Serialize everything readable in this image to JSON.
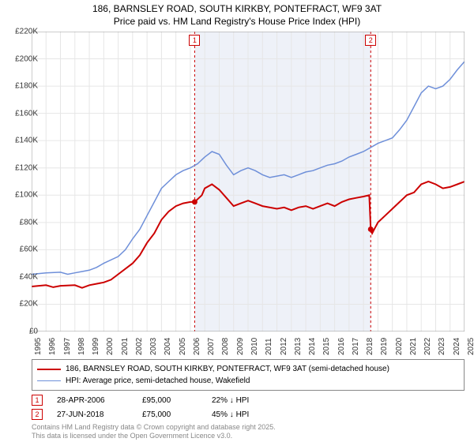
{
  "title_line1": "186, BARNSLEY ROAD, SOUTH KIRKBY, PONTEFRACT, WF9 3AT",
  "title_line2": "Price paid vs. HM Land Registry's House Price Index (HPI)",
  "chart": {
    "type": "line",
    "background_color": "#ffffff",
    "plot_shade_color": "#eef1f8",
    "grid_color": "#e6e6e6",
    "ylim": [
      0,
      220000
    ],
    "ytick_step": 20000,
    "y_tick_labels": [
      "£0",
      "£20K",
      "£40K",
      "£60K",
      "£80K",
      "£100K",
      "£120K",
      "£140K",
      "£160K",
      "£180K",
      "£200K",
      "£220K"
    ],
    "x_years": [
      1995,
      1996,
      1997,
      1998,
      1999,
      2000,
      2001,
      2002,
      2003,
      2004,
      2005,
      2006,
      2007,
      2008,
      2009,
      2010,
      2011,
      2012,
      2013,
      2014,
      2015,
      2016,
      2017,
      2018,
      2019,
      2020,
      2021,
      2022,
      2023,
      2024,
      2025
    ],
    "shade_start_year": 2006.3,
    "shade_end_year": 2018.5,
    "series": [
      {
        "name": "price_paid",
        "color": "#cc0000",
        "width": 2,
        "points": [
          [
            1995,
            33000
          ],
          [
            1996,
            34000
          ],
          [
            1996.5,
            32500
          ],
          [
            1997,
            33500
          ],
          [
            1998,
            34000
          ],
          [
            1998.5,
            32000
          ],
          [
            1999,
            34000
          ],
          [
            2000,
            36000
          ],
          [
            2000.5,
            38000
          ],
          [
            2001,
            42000
          ],
          [
            2002,
            50000
          ],
          [
            2002.5,
            56000
          ],
          [
            2003,
            65000
          ],
          [
            2003.5,
            72000
          ],
          [
            2004,
            82000
          ],
          [
            2004.5,
            88000
          ],
          [
            2005,
            92000
          ],
          [
            2005.5,
            94000
          ],
          [
            2006,
            95000
          ],
          [
            2006.3,
            95000
          ],
          [
            2006.8,
            100000
          ],
          [
            2007,
            105000
          ],
          [
            2007.5,
            108000
          ],
          [
            2008,
            104000
          ],
          [
            2008.5,
            98000
          ],
          [
            2009,
            92000
          ],
          [
            2009.5,
            94000
          ],
          [
            2010,
            96000
          ],
          [
            2010.5,
            94000
          ],
          [
            2011,
            92000
          ],
          [
            2012,
            90000
          ],
          [
            2012.5,
            91000
          ],
          [
            2013,
            89000
          ],
          [
            2013.5,
            91000
          ],
          [
            2014,
            92000
          ],
          [
            2014.5,
            90000
          ],
          [
            2015,
            92000
          ],
          [
            2015.5,
            94000
          ],
          [
            2016,
            92000
          ],
          [
            2016.5,
            95000
          ],
          [
            2017,
            97000
          ],
          [
            2017.5,
            98000
          ],
          [
            2018,
            99000
          ],
          [
            2018.4,
            100000
          ],
          [
            2018.5,
            75000
          ],
          [
            2018.6,
            72000
          ],
          [
            2018.8,
            76000
          ],
          [
            2019,
            80000
          ],
          [
            2019.5,
            85000
          ],
          [
            2020,
            90000
          ],
          [
            2020.5,
            95000
          ],
          [
            2021,
            100000
          ],
          [
            2021.5,
            102000
          ],
          [
            2022,
            108000
          ],
          [
            2022.5,
            110000
          ],
          [
            2023,
            108000
          ],
          [
            2023.5,
            105000
          ],
          [
            2024,
            106000
          ],
          [
            2024.5,
            108000
          ],
          [
            2025,
            110000
          ]
        ]
      },
      {
        "name": "hpi",
        "color": "#6e8fd9",
        "width": 1.5,
        "points": [
          [
            1995,
            42000
          ],
          [
            1996,
            43000
          ],
          [
            1997,
            43500
          ],
          [
            1997.5,
            42000
          ],
          [
            1998,
            43000
          ],
          [
            1998.5,
            44000
          ],
          [
            1999,
            45000
          ],
          [
            1999.5,
            47000
          ],
          [
            2000,
            50000
          ],
          [
            2001,
            55000
          ],
          [
            2001.5,
            60000
          ],
          [
            2002,
            68000
          ],
          [
            2002.5,
            75000
          ],
          [
            2003,
            85000
          ],
          [
            2003.5,
            95000
          ],
          [
            2004,
            105000
          ],
          [
            2004.5,
            110000
          ],
          [
            2005,
            115000
          ],
          [
            2005.5,
            118000
          ],
          [
            2006,
            120000
          ],
          [
            2006.5,
            123000
          ],
          [
            2007,
            128000
          ],
          [
            2007.5,
            132000
          ],
          [
            2008,
            130000
          ],
          [
            2008.5,
            122000
          ],
          [
            2009,
            115000
          ],
          [
            2009.5,
            118000
          ],
          [
            2010,
            120000
          ],
          [
            2010.5,
            118000
          ],
          [
            2011,
            115000
          ],
          [
            2011.5,
            113000
          ],
          [
            2012,
            114000
          ],
          [
            2012.5,
            115000
          ],
          [
            2013,
            113000
          ],
          [
            2013.5,
            115000
          ],
          [
            2014,
            117000
          ],
          [
            2014.5,
            118000
          ],
          [
            2015,
            120000
          ],
          [
            2015.5,
            122000
          ],
          [
            2016,
            123000
          ],
          [
            2016.5,
            125000
          ],
          [
            2017,
            128000
          ],
          [
            2017.5,
            130000
          ],
          [
            2018,
            132000
          ],
          [
            2018.5,
            135000
          ],
          [
            2019,
            138000
          ],
          [
            2019.5,
            140000
          ],
          [
            2020,
            142000
          ],
          [
            2020.5,
            148000
          ],
          [
            2021,
            155000
          ],
          [
            2021.5,
            165000
          ],
          [
            2022,
            175000
          ],
          [
            2022.5,
            180000
          ],
          [
            2023,
            178000
          ],
          [
            2023.5,
            180000
          ],
          [
            2024,
            185000
          ],
          [
            2024.5,
            192000
          ],
          [
            2025,
            198000
          ]
        ]
      }
    ],
    "sale_markers": [
      {
        "id": "1",
        "year": 2006.3,
        "y": 95000
      },
      {
        "id": "2",
        "year": 2018.5,
        "y": 75000
      }
    ],
    "marker_line_color": "#cc0000"
  },
  "legend": {
    "items": [
      {
        "color": "#cc0000",
        "width": 2,
        "label": "186, BARNSLEY ROAD, SOUTH KIRKBY, PONTEFRACT, WF9 3AT (semi-detached house)"
      },
      {
        "color": "#6e8fd9",
        "width": 1.5,
        "label": "HPI: Average price, semi-detached house, Wakefield"
      }
    ]
  },
  "annotations": [
    {
      "id": "1",
      "date": "28-APR-2006",
      "price": "£95,000",
      "delta": "22% ↓ HPI"
    },
    {
      "id": "2",
      "date": "27-JUN-2018",
      "price": "£75,000",
      "delta": "45% ↓ HPI"
    }
  ],
  "footer_line1": "Contains HM Land Registry data © Crown copyright and database right 2025.",
  "footer_line2": "This data is licensed under the Open Government Licence v3.0."
}
